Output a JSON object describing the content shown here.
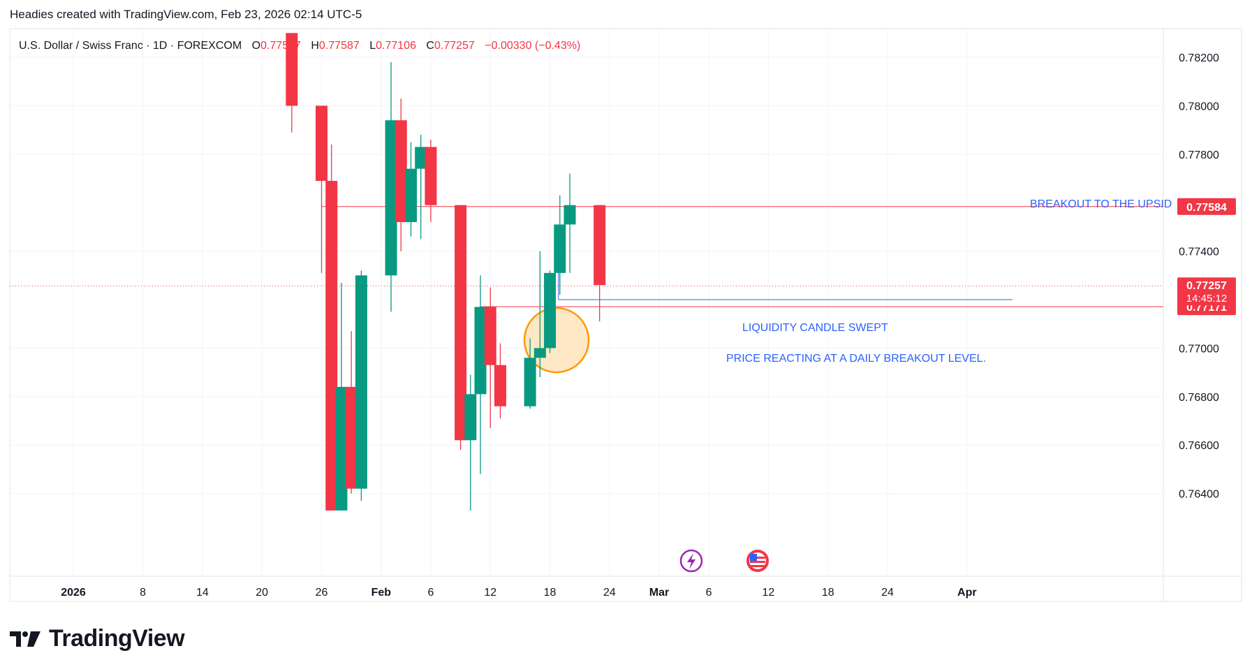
{
  "header": {
    "created_text": "Headies created with TradingView.com, Feb 23, 2026 02:14 UTC-5"
  },
  "legend": {
    "symbol": "U.S. Dollar / Swiss Franc · 1D · FOREXCOM",
    "o_label": "O",
    "o_value": "0.77587",
    "h_label": "H",
    "h_value": "0.77587",
    "l_label": "L",
    "l_value": "0.77106",
    "c_label": "C",
    "c_value": "0.77257",
    "change": "−0.00330 (−0.43%)"
  },
  "footer": {
    "brand": "TradingView"
  },
  "colors": {
    "up": "#089981",
    "down": "#f23645",
    "grid": "#f0f3fa",
    "annotation_blue": "#2962ff",
    "circle_stroke": "#ff9800",
    "circle_fill": "#ffe0b2",
    "purple": "#9c27b0"
  },
  "chart_data": {
    "type": "candlestick",
    "title": "U.S. Dollar / Swiss Franc · 1D · FOREXCOM",
    "x_ticks": [
      "2026",
      "8",
      "14",
      "20",
      "26",
      "Feb",
      "6",
      "12",
      "18",
      "24",
      "Mar",
      "6",
      "12",
      "18",
      "24",
      "Apr"
    ],
    "y_ticks": [
      "0.78200",
      "0.78000",
      "0.77800",
      "0.77400",
      "0.77000",
      "0.76800",
      "0.76600",
      "0.76400"
    ],
    "y_range": [
      0.7633,
      0.783
    ],
    "grid": true,
    "candles": [
      {
        "date": "2026-01-23",
        "o": 0.783,
        "h": 0.783,
        "l": 0.7789,
        "c": 0.78
      },
      {
        "date": "2026-01-26",
        "o": 0.78,
        "h": 0.78,
        "l": 0.7731,
        "c": 0.7769
      },
      {
        "date": "2026-01-27",
        "o": 0.7769,
        "h": 0.7784,
        "l": 0.7633,
        "c": 0.7633
      },
      {
        "date": "2026-01-28",
        "o": 0.7633,
        "h": 0.7727,
        "l": 0.7633,
        "c": 0.7684
      },
      {
        "date": "2026-01-29",
        "o": 0.7684,
        "h": 0.7707,
        "l": 0.764,
        "c": 0.7642
      },
      {
        "date": "2026-01-30",
        "o": 0.7642,
        "h": 0.7732,
        "l": 0.7637,
        "c": 0.773
      },
      {
        "date": "2026-02-02",
        "o": 0.773,
        "h": 0.7818,
        "l": 0.7715,
        "c": 0.7794
      },
      {
        "date": "2026-02-03",
        "o": 0.7794,
        "h": 0.7803,
        "l": 0.774,
        "c": 0.7752
      },
      {
        "date": "2026-02-04",
        "o": 0.7752,
        "h": 0.7785,
        "l": 0.7746,
        "c": 0.7774
      },
      {
        "date": "2026-02-05",
        "o": 0.7774,
        "h": 0.7788,
        "l": 0.7745,
        "c": 0.7783
      },
      {
        "date": "2026-02-06",
        "o": 0.7783,
        "h": 0.7786,
        "l": 0.7752,
        "c": 0.7759
      },
      {
        "date": "2026-02-09",
        "o": 0.7759,
        "h": 0.7759,
        "l": 0.7658,
        "c": 0.7662
      },
      {
        "date": "2026-02-10",
        "o": 0.7662,
        "h": 0.7689,
        "l": 0.7633,
        "c": 0.7681
      },
      {
        "date": "2026-02-11",
        "o": 0.7681,
        "h": 0.773,
        "l": 0.7648,
        "c": 0.7717
      },
      {
        "date": "2026-02-12",
        "o": 0.7717,
        "h": 0.7725,
        "l": 0.7667,
        "c": 0.7693
      },
      {
        "date": "2026-02-13",
        "o": 0.7693,
        "h": 0.7702,
        "l": 0.7671,
        "c": 0.7676
      },
      {
        "date": "2026-02-16",
        "o": 0.7676,
        "h": 0.7704,
        "l": 0.7675,
        "c": 0.7696
      },
      {
        "date": "2026-02-17",
        "o": 0.7696,
        "h": 0.774,
        "l": 0.7688,
        "c": 0.77
      },
      {
        "date": "2026-02-18",
        "o": 0.77,
        "h": 0.7732,
        "l": 0.7698,
        "c": 0.7731
      },
      {
        "date": "2026-02-19",
        "o": 0.7731,
        "h": 0.7763,
        "l": 0.7722,
        "c": 0.7751
      },
      {
        "date": "2026-02-20",
        "o": 0.7751,
        "h": 0.7772,
        "l": 0.7731,
        "c": 0.7759
      },
      {
        "date": "2026-02-23",
        "o": 0.7759,
        "h": 0.7759,
        "l": 0.7711,
        "c": 0.7726
      }
    ],
    "price_lines": [
      {
        "value": 0.77584,
        "label": "0.77584"
      },
      {
        "value": 0.77171,
        "label": "0.77171"
      },
      {
        "value": 0.77257,
        "label": "0.77257",
        "countdown": "14:45:12"
      }
    ],
    "annotations": [
      {
        "text": "BREAKOUT TO THE UPSID"
      },
      {
        "text": "LIQUIDITY CANDLE SWEPT"
      },
      {
        "text": "PRICE REACTING AT A DAILY BREAKOUT LEVEL."
      }
    ]
  }
}
